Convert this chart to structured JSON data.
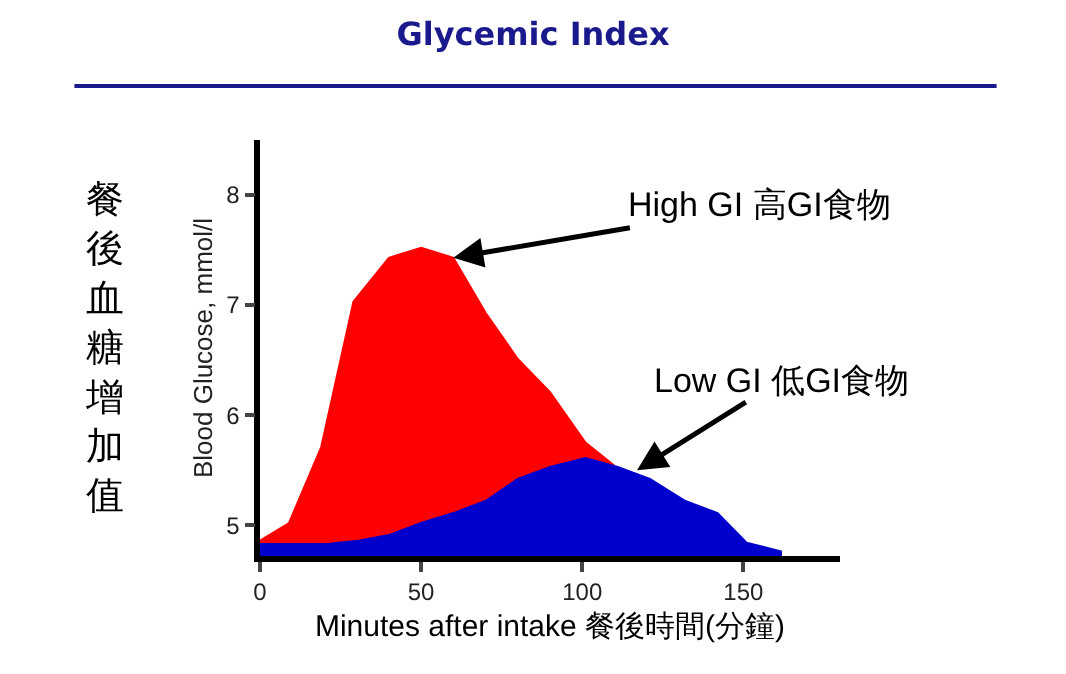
{
  "chart_data": {
    "type": "area",
    "title": "Glycemic Index",
    "xlabel": "Minutes after intake 餐後時間(分鐘)",
    "ylabel": "Blood Glucose, mmol/l",
    "series": [
      {
        "color": "#ff0000",
        "x": [
          0,
          9,
          19,
          29,
          40,
          50,
          60,
          70,
          80,
          90,
          101,
          110
        ],
        "values": [
          4.86,
          5.02,
          5.71,
          7.03,
          7.43,
          7.52,
          7.43,
          6.93,
          6.51,
          6.21,
          5.75,
          5.54
        ]
      },
      {
        "color": "#0000cc",
        "x": [
          0,
          21,
          31,
          40,
          50,
          60,
          70,
          80,
          90,
          101,
          111,
          121,
          132,
          142,
          151,
          162
        ],
        "values": [
          4.83,
          4.83,
          4.86,
          4.91,
          5.02,
          5.11,
          5.22,
          5.42,
          5.53,
          5.61,
          5.53,
          5.42,
          5.22,
          5.11,
          4.84,
          4.76
        ]
      }
    ],
    "annotations": [
      {
        "text": "High GI 高GI食物",
        "x": 60,
        "y": 7.43
      },
      {
        "text": "Low GI 低GI食物",
        "x": 117,
        "y": 5.5
      },
      "餐後血糖增加值"
    ],
    "xlim": [
      0,
      180
    ],
    "ylim": [
      4.72,
      8.5
    ],
    "xticks": [
      0,
      50,
      100,
      150
    ],
    "yticks": [
      5,
      6,
      7,
      8
    ]
  }
}
